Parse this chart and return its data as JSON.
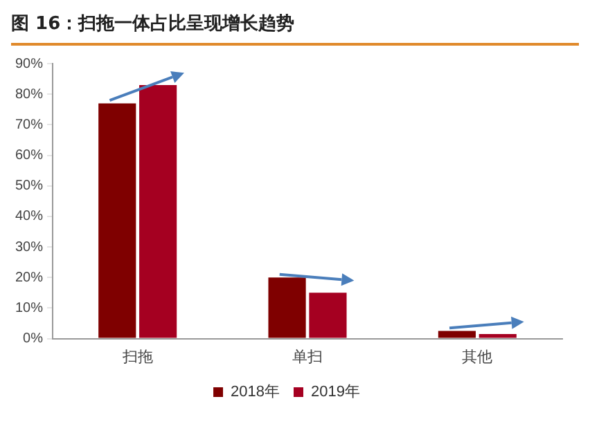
{
  "chart_data": {
    "type": "bar",
    "title": "图 16：扫拖一体占比呈现增长趋势",
    "categories": [
      "扫拖",
      "单扫",
      "其他"
    ],
    "series": [
      {
        "name": "2018年",
        "color": "#7f0000",
        "values": [
          77,
          20,
          2.5
        ]
      },
      {
        "name": "2019年",
        "color": "#a50021",
        "values": [
          83,
          15,
          1.5
        ]
      }
    ],
    "ylim": [
      0,
      90
    ],
    "yticks": [
      {
        "value": 0,
        "label": "0%"
      },
      {
        "value": 10,
        "label": "10%"
      },
      {
        "value": 20,
        "label": "20%"
      },
      {
        "value": 30,
        "label": "30%"
      },
      {
        "value": 40,
        "label": "40%"
      },
      {
        "value": 50,
        "label": "50%"
      },
      {
        "value": 60,
        "label": "60%"
      },
      {
        "value": 70,
        "label": "70%"
      },
      {
        "value": 80,
        "label": "80%"
      },
      {
        "value": 90,
        "label": "90%"
      }
    ],
    "grid": false,
    "legend": "bottom"
  }
}
